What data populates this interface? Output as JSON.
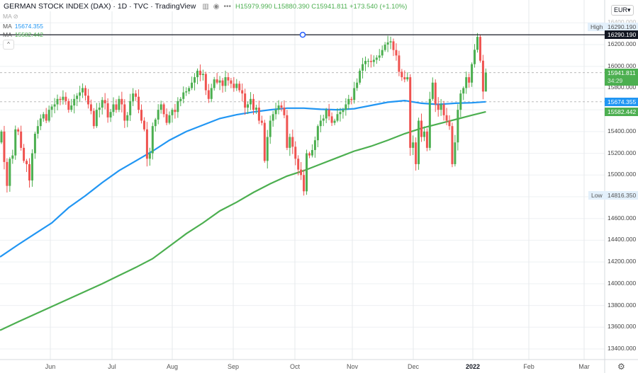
{
  "header": {
    "title": "GERMAN STOCK INDEX (DAX) · 1D · TVC · TradingView",
    "ohlc_text": "H15979.990 L15880.390 C15941.811 +173.540 (+1.10%)",
    "icons": [
      "bar-style-icon",
      "eye-icon",
      "more-icon"
    ]
  },
  "indicators": [
    {
      "label": "MA",
      "value": "",
      "hidden": true
    },
    {
      "label": "MA",
      "value": "15674.355",
      "color": "#2196f3"
    },
    {
      "label": "MA",
      "value": "15582.442",
      "color": "#4caf50"
    }
  ],
  "currency": "EUR",
  "price_labels": {
    "high_label": "High",
    "high_value": "16290.190",
    "crosshair_value": "16290.190",
    "last_value": "15941.811",
    "countdown": "34:29",
    "ma1_value": "15674.355",
    "ma2_value": "15582.442",
    "low_label": "Low",
    "low_value": "14816.350"
  },
  "colors": {
    "up": "#4caf50",
    "down": "#ef5350",
    "ma1": "#2196f3",
    "ma2": "#4caf50",
    "crosshair": "#131722"
  },
  "chart_data": {
    "type": "candlestick",
    "title": "GERMAN STOCK INDEX (DAX)",
    "interval": "1D",
    "ylim": [
      13300,
      16500
    ],
    "y_ticks": [
      "16400.000",
      "16200.000",
      "16000.000",
      "15800.000",
      "15400.000",
      "15200.000",
      "15000.000",
      "14600.000",
      "14400.000",
      "14200.000",
      "14000.000",
      "13800.000",
      "13600.000",
      "13400.000"
    ],
    "x_ticks": [
      "Jun",
      "Jul",
      "Aug",
      "Sep",
      "Oct",
      "Nov",
      "Dec",
      "2022",
      "Feb",
      "Mar"
    ],
    "grid": true,
    "high": 16290.19,
    "low": 14816.35,
    "close": [
      15400,
      15120,
      14900,
      15150,
      15180,
      15420,
      15400,
      15250,
      15130,
      15100,
      14950,
      15200,
      15380,
      15450,
      15520,
      15560,
      15500,
      15600,
      15630,
      15650,
      15700,
      15690,
      15720,
      15680,
      15600,
      15640,
      15700,
      15730,
      15760,
      15800,
      15730,
      15650,
      15590,
      15450,
      15600,
      15620,
      15690,
      15660,
      15530,
      15580,
      15650,
      15600,
      15700,
      15650,
      15500,
      15550,
      15680,
      15750,
      15720,
      15600,
      15500,
      15420,
      15150,
      15200,
      15450,
      15510,
      15600,
      15650,
      15560,
      15480,
      15550,
      15600,
      15580,
      15680,
      15700,
      15760,
      15770,
      15800,
      15850,
      15900,
      15960,
      15920,
      15930,
      15780,
      15700,
      15800,
      15880,
      15850,
      15870,
      15820,
      15900,
      15870,
      15840,
      15800,
      15840,
      15780,
      15750,
      15620,
      15650,
      15700,
      15600,
      15620,
      15500,
      15480,
      15130,
      15350,
      15500,
      15560,
      15600,
      15640,
      15620,
      15550,
      15250,
      15350,
      15260,
      15150,
      15050,
      15000,
      14850,
      15200,
      15180,
      15230,
      15320,
      15450,
      15500,
      15520,
      15600,
      15540,
      15480,
      15500,
      15560,
      15580,
      15600,
      15650,
      15700,
      15690,
      15800,
      15850,
      15960,
      16020,
      16050,
      16050,
      16040,
      16060,
      16080,
      16100,
      16150,
      16200,
      16220,
      16230,
      16150,
      16100,
      15950,
      15900,
      15880,
      15900,
      15250,
      15300,
      15100,
      15500,
      15350,
      15400,
      15250,
      15700,
      15850,
      15650,
      15600,
      15650,
      15550,
      15500,
      15450,
      15100,
      15300,
      15600,
      15750,
      15800,
      15900,
      15850,
      16020,
      16152,
      16271,
      16052,
      15768,
      15942
    ],
    "series": [
      {
        "name": "MA",
        "value": 15674.355,
        "values": [
          14255,
          14360,
          14460,
          14560,
          14700,
          14810,
          14930,
          15040,
          15130,
          15220,
          15320,
          15400,
          15460,
          15520,
          15555,
          15580,
          15600,
          15615,
          15615,
          15605,
          15600,
          15610,
          15640,
          15670,
          15685,
          15660,
          15650,
          15660,
          15665,
          15674
        ]
      },
      {
        "name": "MA",
        "value": 15582.442,
        "values": [
          13578,
          13650,
          13720,
          13790,
          13860,
          13930,
          14000,
          14075,
          14150,
          14230,
          14345,
          14460,
          14560,
          14670,
          14750,
          14840,
          14920,
          14990,
          15040,
          15100,
          15160,
          15220,
          15265,
          15320,
          15380,
          15430,
          15470,
          15510,
          15550,
          15582
        ]
      }
    ]
  }
}
